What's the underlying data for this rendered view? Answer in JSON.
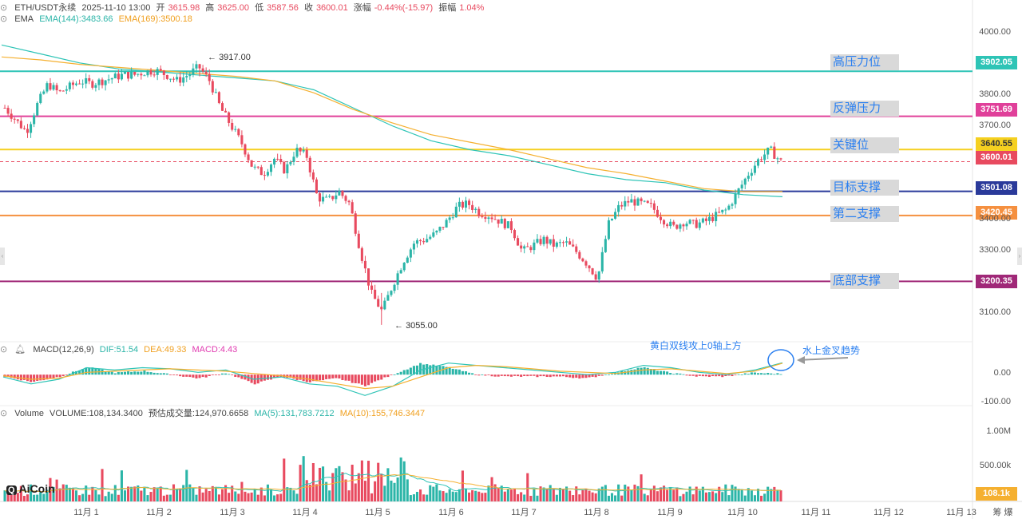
{
  "header": {
    "symbol": "ETH/USDT永续",
    "time": "2025-11-10 13:00",
    "open_label": "开",
    "open": "3615.98",
    "high_label": "高",
    "high": "3625.00",
    "low_label": "低",
    "low": "3587.56",
    "close_label": "收",
    "close": "3600.01",
    "change_label": "涨幅",
    "change": "-0.44%(-15.97)",
    "amp_label": "振幅",
    "amp": "1.04%"
  },
  "ema_header": {
    "name": "EMA",
    "ema144": "EMA(144):3483.66",
    "ema169": "EMA(169):3500.18"
  },
  "macd_header": {
    "name": "MACD(12,26,9)",
    "dif": "DIF:51.54",
    "dea": "DEA:49.33",
    "macd": "MACD:4.43"
  },
  "vol_header": {
    "name": "Volume",
    "volume": "VOLUME:108,134.3400",
    "est": "预估成交量:124,970.6658",
    "ma5": "MA(5):131,783.7212",
    "ma10": "MA(10):155,746.3447"
  },
  "levels": [
    {
      "label": "高压力位",
      "price": "3902.05",
      "value": 3902.05,
      "color": "#2ec4b6"
    },
    {
      "label": "反弹压力",
      "price": "3751.69",
      "value": 3751.69,
      "color": "#e0409a"
    },
    {
      "label": "关键位",
      "price": "3640.55",
      "value": 3640.55,
      "color": "#f5d020"
    },
    {
      "label": "目标支撑",
      "price": "3501.08",
      "value": 3501.08,
      "color": "#2a3a9a"
    },
    {
      "label": "第二支撑",
      "price": "3420.45",
      "value": 3420.45,
      "color": "#f59040"
    },
    {
      "label": "底部支撑",
      "price": "3200.35",
      "value": 3200.35,
      "color": "#a02878"
    }
  ],
  "current_price": {
    "price": "3600.01",
    "value": 3600.01,
    "color": "#e84a5f"
  },
  "price_axis": [
    "4000.00",
    "3900.00",
    "3800.00",
    "3700.00",
    "3600.00",
    "3500.00",
    "3400.00",
    "3300.00",
    "3200.00",
    "3100.00"
  ],
  "macd_axis": [
    "0.00",
    "-100.00"
  ],
  "vol_axis": [
    "1.00M",
    "500.00k"
  ],
  "vol_tag": "108.1k",
  "dates": [
    "11月 1",
    "11月 2",
    "11月 3",
    "11月 4",
    "11月 5",
    "11月 6",
    "11月 7",
    "11月 8",
    "11月 9",
    "11月 10",
    "11月 11",
    "11月 12",
    "11月 13"
  ],
  "extremes": {
    "high": "3917.00",
    "low": "3055.00"
  },
  "annotations": {
    "macd_note": "黄白双线攻上0轴上方",
    "cross_note": "水上金叉趋势"
  },
  "logo": "AiCoin",
  "bottom_right": "筹 爆",
  "colors": {
    "up": "#2bb5a8",
    "down": "#e84a5f",
    "ema144": "#2ec4b6",
    "ema169": "#f5b030"
  },
  "chart_data": {
    "type": "candlestick",
    "symbol": "ETH/USDT永续",
    "interval_hint": "hourly",
    "x": [
      "11月 1",
      "11月 2",
      "11月 3",
      "11月 4",
      "11月 5",
      "11月 6",
      "11月 7",
      "11月 8",
      "11月 9",
      "11月 10"
    ],
    "close_path": [
      3780,
      3740,
      3700,
      3790,
      3860,
      3830,
      3850,
      3870,
      3860,
      3870,
      3880,
      3890,
      3890,
      3900,
      3905,
      3890,
      3870,
      3890,
      3917,
      3870,
      3780,
      3720,
      3660,
      3580,
      3560,
      3610,
      3570,
      3640,
      3620,
      3480,
      3470,
      3500,
      3460,
      3300,
      3160,
      3100,
      3190,
      3270,
      3330,
      3340,
      3360,
      3400,
      3450,
      3460,
      3430,
      3420,
      3400,
      3380,
      3300,
      3320,
      3340,
      3320,
      3330,
      3300,
      3260,
      3210,
      3390,
      3450,
      3470,
      3460,
      3450,
      3410,
      3380,
      3400,
      3390,
      3400,
      3420,
      3440,
      3500,
      3560,
      3610,
      3640,
      3600
    ],
    "ema144_path": [
      3990,
      3960,
      3930,
      3910,
      3900,
      3890,
      3880,
      3870,
      3840,
      3780,
      3720,
      3670,
      3640,
      3620,
      3590,
      3560,
      3540,
      3530,
      3505,
      3490,
      3483
    ],
    "ema169_path": [
      3950,
      3940,
      3925,
      3915,
      3905,
      3895,
      3885,
      3870,
      3830,
      3775,
      3730,
      3690,
      3665,
      3640,
      3610,
      3580,
      3560,
      3535,
      3510,
      3500,
      3500
    ],
    "ylim": [
      3020,
      4060
    ],
    "high_point": 3917.0,
    "low_point": 3055.0,
    "macd_dif_path": [
      -10,
      -40,
      -20,
      30,
      20,
      30,
      25,
      10,
      20,
      -20,
      -10,
      -40,
      -50,
      -90,
      -50,
      20,
      50,
      40,
      30,
      20,
      10,
      0,
      10,
      40,
      30,
      10,
      0,
      20,
      51.54
    ],
    "macd_dea_path": [
      -5,
      -20,
      -15,
      10,
      15,
      20,
      25,
      20,
      15,
      5,
      -5,
      -20,
      -40,
      -60,
      -50,
      -10,
      30,
      40,
      35,
      25,
      15,
      10,
      5,
      20,
      25,
      15,
      5,
      15,
      49.33
    ],
    "macd_ylim": [
      -120,
      80
    ],
    "volume_ma5": 131783.7212,
    "volume_ma10": 155746.3447,
    "volume_last": 108134.34,
    "volume_ylim": [
      0,
      1200000
    ]
  }
}
